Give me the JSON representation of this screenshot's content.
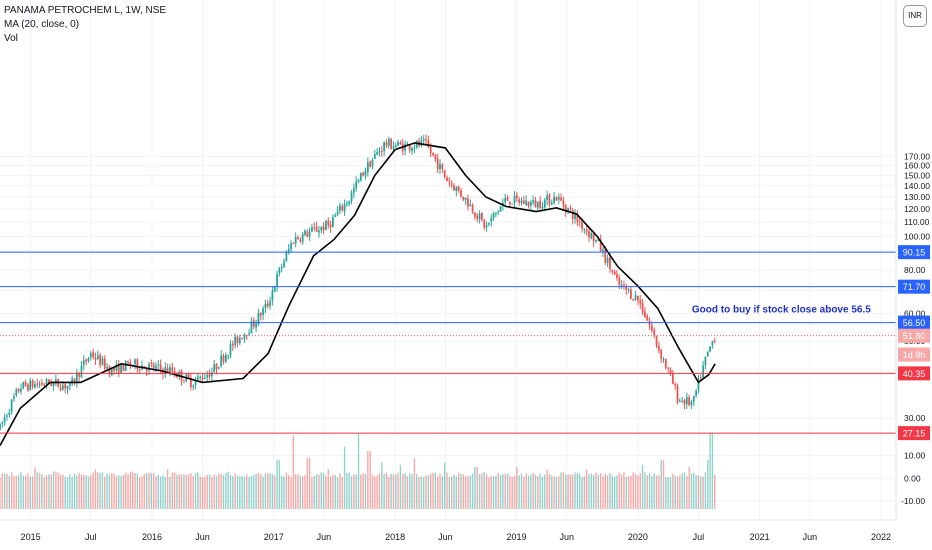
{
  "legend": {
    "symbol": "PANAMA PETROCHEM L, 1W, NSE",
    "indicator": "MA (20, close, 0)",
    "volume": "Vol"
  },
  "currency_label": "INR",
  "colors": {
    "up": "#26a69a",
    "down": "#ef5350",
    "ma": "#000000",
    "resistance": "#2962ff",
    "support": "#f23645",
    "annotation": "#1e2fc7"
  },
  "chart_data": {
    "type": "candlestick",
    "symbol": "PANAMA PETROCHEM L",
    "interval": "1W",
    "exchange": "NSE",
    "ylim": [
      14,
      186
    ],
    "yticks": [
      20,
      30,
      40,
      50,
      60,
      70,
      80,
      90,
      100,
      110,
      120,
      130,
      140,
      150,
      160,
      170
    ],
    "x_ticks": [
      "2015",
      "Jul",
      "2016",
      "Jun",
      "2017",
      "Jun",
      "2018",
      "Jun",
      "2019",
      "Jun",
      "2020",
      "Jul",
      "2021",
      "Jun",
      "2022"
    ],
    "price_path": [
      [
        "2014-10-01",
        28
      ],
      [
        "2014-12-01",
        37
      ],
      [
        "2015-03-01",
        38
      ],
      [
        "2015-05-01",
        37
      ],
      [
        "2015-07-01",
        46
      ],
      [
        "2015-09-01",
        41
      ],
      [
        "2015-11-01",
        43
      ],
      [
        "2016-01-01",
        42
      ],
      [
        "2016-03-01",
        41
      ],
      [
        "2016-05-01",
        38
      ],
      [
        "2016-07-01",
        41
      ],
      [
        "2016-09-01",
        49
      ],
      [
        "2016-11-01",
        56
      ],
      [
        "2016-12-15",
        64
      ],
      [
        "2017-01-15",
        78
      ],
      [
        "2017-03-01",
        98
      ],
      [
        "2017-05-01",
        104
      ],
      [
        "2017-06-15",
        108
      ],
      [
        "2017-08-15",
        128
      ],
      [
        "2017-10-01",
        155
      ],
      [
        "2017-12-01",
        185
      ],
      [
        "2018-02-01",
        182
      ],
      [
        "2018-04-01",
        185
      ],
      [
        "2018-06-01",
        148
      ],
      [
        "2018-08-01",
        128
      ],
      [
        "2018-10-01",
        106
      ],
      [
        "2018-12-01",
        128
      ],
      [
        "2019-03-01",
        124
      ],
      [
        "2019-05-01",
        130
      ],
      [
        "2019-07-01",
        112
      ],
      [
        "2019-09-01",
        96
      ],
      [
        "2019-11-01",
        73
      ],
      [
        "2020-01-01",
        66
      ],
      [
        "2020-03-01",
        48
      ],
      [
        "2020-05-01",
        34
      ],
      [
        "2020-06-15",
        33
      ],
      [
        "2020-08-01",
        47
      ],
      [
        "2020-08-20",
        51.8
      ]
    ],
    "ma_path": [
      [
        "2014-10-01",
        25
      ],
      [
        "2014-12-01",
        32
      ],
      [
        "2015-03-01",
        38
      ],
      [
        "2015-06-01",
        38
      ],
      [
        "2015-10-01",
        43
      ],
      [
        "2016-02-01",
        41
      ],
      [
        "2016-06-01",
        38
      ],
      [
        "2016-10-01",
        39
      ],
      [
        "2016-12-15",
        46
      ],
      [
        "2017-02-15",
        63
      ],
      [
        "2017-05-01",
        88
      ],
      [
        "2017-07-01",
        98
      ],
      [
        "2017-09-01",
        115
      ],
      [
        "2017-11-01",
        150
      ],
      [
        "2018-01-01",
        178
      ],
      [
        "2018-03-01",
        186
      ],
      [
        "2018-06-01",
        180
      ],
      [
        "2018-08-01",
        150
      ],
      [
        "2018-10-01",
        130
      ],
      [
        "2018-12-01",
        122
      ],
      [
        "2019-03-01",
        118
      ],
      [
        "2019-05-01",
        121
      ],
      [
        "2019-07-01",
        116
      ],
      [
        "2019-09-01",
        100
      ],
      [
        "2019-11-01",
        82
      ],
      [
        "2020-01-01",
        72
      ],
      [
        "2020-03-01",
        62
      ],
      [
        "2020-05-01",
        48
      ],
      [
        "2020-07-01",
        38
      ],
      [
        "2020-08-01",
        40
      ],
      [
        "2020-08-20",
        43
      ]
    ],
    "ma_label": "MA (20, close, 0)",
    "levels": [
      {
        "value": 90.15,
        "label": "90.15",
        "color": "blue",
        "style": "solid"
      },
      {
        "value": 71.7,
        "label": "71.70",
        "color": "blue",
        "style": "solid"
      },
      {
        "value": 56.5,
        "label": "56.50",
        "color": "blue",
        "style": "solid"
      },
      {
        "value": 51.8,
        "label": "51.80",
        "color": "red",
        "style": "dotted"
      },
      {
        "value": 40.35,
        "label": "40.35",
        "color": "red",
        "style": "solid"
      },
      {
        "value": 27.15,
        "label": "27.15",
        "color": "red",
        "style": "solid"
      }
    ],
    "countdown_label": "1d 8h",
    "annotation": {
      "text": "Good to buy if stock close above 56.5",
      "date": "2020-03-01",
      "price": 60.5
    },
    "volume": {
      "yticks": [
        20.0,
        10.0,
        0.0,
        -10.0
      ],
      "ytick_labels": [
        "20.00",
        "10.00",
        "0.00",
        "-10.00"
      ],
      "ylim": [
        -13.5,
        23.5
      ],
      "spikes": [
        [
          "2015-01-15",
          5
        ],
        [
          "2015-03-15",
          3
        ],
        [
          "2015-07-15",
          4
        ],
        [
          "2015-11-01",
          3
        ],
        [
          "2016-02-15",
          4
        ],
        [
          "2016-08-15",
          3
        ],
        [
          "2017-01-15",
          8
        ],
        [
          "2017-03-01",
          19
        ],
        [
          "2017-04-15",
          9
        ],
        [
          "2017-06-15",
          4
        ],
        [
          "2017-08-01",
          14
        ],
        [
          "2017-09-15",
          20
        ],
        [
          "2017-10-15",
          12
        ],
        [
          "2017-11-20",
          7
        ],
        [
          "2018-01-15",
          6
        ],
        [
          "2018-03-01",
          9
        ],
        [
          "2018-06-01",
          7
        ],
        [
          "2018-09-01",
          5
        ],
        [
          "2019-01-01",
          5
        ],
        [
          "2019-04-01",
          4
        ],
        [
          "2019-08-01",
          4
        ],
        [
          "2020-01-15",
          6
        ],
        [
          "2020-03-15",
          8
        ],
        [
          "2020-06-01",
          5
        ],
        [
          "2020-08-01",
          8
        ],
        [
          "2020-08-08",
          20
        ]
      ]
    }
  }
}
